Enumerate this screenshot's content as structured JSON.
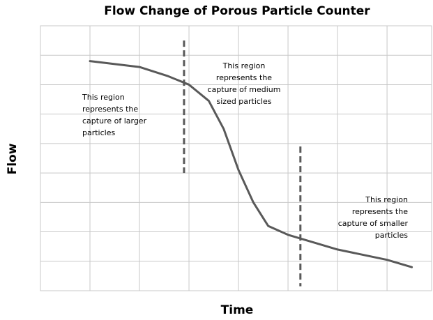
{
  "chart_data": {
    "type": "line",
    "title": "Flow Change of Porous Particle Counter",
    "x_label": "Time",
    "y_label": "Flow",
    "x": [
      1,
      2,
      2.56,
      3,
      3.4,
      3.7,
      4,
      4.3,
      4.6,
      5,
      6,
      7,
      7.5
    ],
    "values": [
      7.8,
      7.6,
      7.3,
      7.0,
      6.45,
      5.5,
      4.1,
      3.0,
      2.2,
      1.9,
      1.4,
      1.05,
      0.8
    ],
    "color": "#595959",
    "xlim": [
      0,
      7.9
    ],
    "ylim": [
      0,
      9
    ],
    "xticks": [
      0,
      1,
      2,
      3,
      4,
      5,
      6,
      7
    ],
    "yticks": [
      0,
      1,
      2,
      3,
      4,
      5,
      6,
      7,
      8,
      9
    ],
    "grid": true,
    "dividers": [
      {
        "x": 2.9,
        "y": [
          8.5,
          4.0
        ]
      },
      {
        "x": 5.25,
        "y": [
          4.9,
          0.15
        ]
      }
    ],
    "annotations": [
      [
        "This region",
        "represents the",
        "capture of larger",
        "particles"
      ],
      [
        "This region",
        "represents the",
        "capture of medium",
        "sized particles"
      ],
      [
        "This region",
        "represents the",
        "capture of smaller",
        "particles"
      ]
    ]
  }
}
